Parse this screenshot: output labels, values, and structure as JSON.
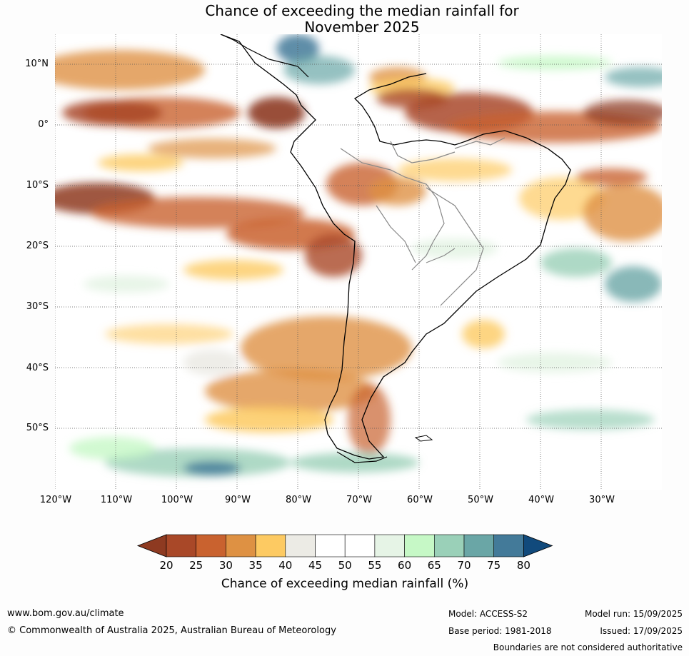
{
  "title": {
    "line1": "Chance of exceeding the median rainfall for",
    "line2": "November 2025"
  },
  "latitude_labels": [
    "10°N",
    "0°",
    "10°S",
    "20°S",
    "30°S",
    "40°S",
    "50°S"
  ],
  "longitude_labels": [
    "120°W",
    "110°W",
    "100°W",
    "90°W",
    "80°W",
    "70°W",
    "60°W",
    "50°W",
    "40°W",
    "30°W"
  ],
  "colorbar": {
    "ticks": [
      "20",
      "25",
      "30",
      "35",
      "40",
      "45",
      "50",
      "55",
      "60",
      "65",
      "70",
      "75",
      "80"
    ],
    "colors": [
      "#8e3a21",
      "#a94828",
      "#c9622f",
      "#de9143",
      "#fdca62",
      "#ecebe5",
      "#ffffff",
      "#ffffff",
      "#e6f4e6",
      "#c6f8c6",
      "#9ad0b8",
      "#6aa6a6",
      "#437a99",
      "#114a7c"
    ],
    "label": "Chance of exceeding median rainfall (%)"
  },
  "footer": {
    "website": "www.bom.gov.au/climate",
    "copyright": "© Commonwealth of Australia 2025, Australian Bureau of Meteorology",
    "model": "Model: ACCESS-S2",
    "base_period": "Base period: 1981-2018",
    "model_run": "Model run: 15/09/2025",
    "issued": "Issued: 17/09/2025",
    "disclaimer": "Boundaries are not considered authoritative"
  }
}
